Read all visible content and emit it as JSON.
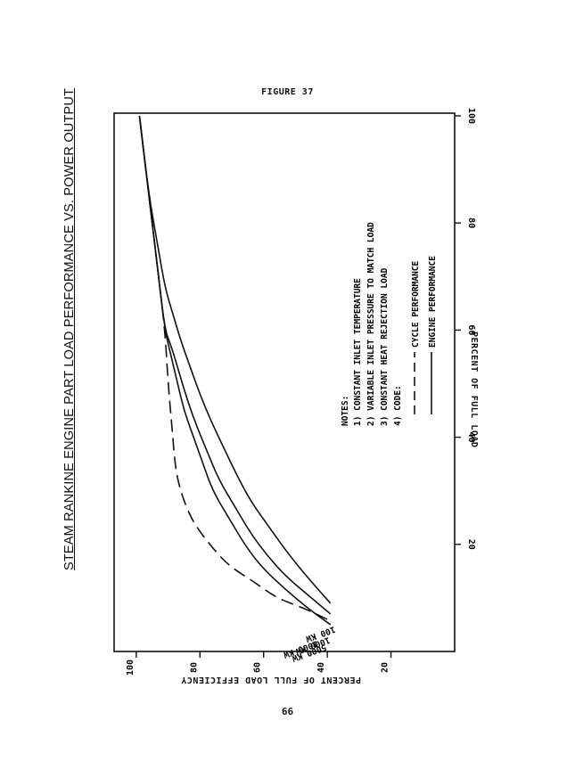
{
  "page": {
    "figure_label": "FIGURE 37",
    "page_number": "66"
  },
  "chart_data": {
    "type": "line",
    "title": "STEAM RANKINE ENGINE PART LOAD PERFORMANCE VS. POWER OUTPUT",
    "xlabel": "PERCENT OF FULL LOAD",
    "ylabel": "PERCENT OF FULL LOAD EFFICIENCY",
    "xlim": [
      0,
      100
    ],
    "ylim": [
      0,
      105
    ],
    "x_ticks": [
      20,
      40,
      60,
      80,
      100
    ],
    "y_ticks": [
      20,
      40,
      60,
      80,
      100
    ],
    "grid": false,
    "series": [
      {
        "name": "1000 KW",
        "style": "dashed",
        "kind": "cycle",
        "x": [
          6,
          8,
          10,
          13,
          16,
          20,
          24,
          28,
          32,
          36,
          40,
          50,
          60,
          70,
          80,
          90,
          100
        ],
        "y": [
          40,
          47,
          56,
          63,
          71,
          77,
          82,
          85,
          87,
          88,
          88.5,
          90,
          91,
          93,
          95,
          97,
          99
        ]
      },
      {
        "name": "5000 KW",
        "style": "solid",
        "kind": "engine",
        "x": [
          5,
          8,
          12,
          16,
          20,
          25,
          30,
          35,
          40,
          45,
          50,
          55,
          60,
          70,
          80,
          90,
          100
        ],
        "y": [
          39,
          46,
          54,
          61,
          66,
          71,
          76,
          79,
          82,
          85,
          87,
          89,
          91,
          93,
          95,
          97,
          99
        ]
      },
      {
        "name": "1000 KW",
        "style": "solid",
        "kind": "engine",
        "x": [
          7,
          10,
          14,
          18,
          22,
          27,
          32,
          37,
          42,
          47,
          52,
          57,
          60,
          70,
          80,
          90,
          100
        ],
        "y": [
          39,
          45,
          53,
          59,
          64,
          69,
          74,
          77.5,
          81,
          84,
          86.5,
          89,
          91,
          93,
          95,
          97,
          99
        ]
      },
      {
        "name": "100 KW",
        "style": "solid",
        "kind": "engine",
        "x": [
          9,
          13,
          18,
          23,
          28,
          33,
          38,
          43,
          48,
          53,
          58,
          63,
          68,
          75,
          85,
          100
        ],
        "y": [
          39,
          45,
          52,
          58,
          64,
          68.5,
          72.5,
          76.5,
          80,
          83,
          86,
          88.5,
          91,
          93,
          96,
          99
        ]
      }
    ],
    "notes": {
      "heading": "NOTES:",
      "items": [
        "1)  CONSTANT INLET TEMPERATURE",
        "2)  VARIABLE INLET PRESSURE TO MATCH LOAD",
        "3)  CONSTANT HEAT REJECTION LOAD",
        "4)  CODE:"
      ],
      "legend": [
        "CYCLE PERFORMANCE",
        "ENGINE PERFORMANCE"
      ]
    }
  }
}
